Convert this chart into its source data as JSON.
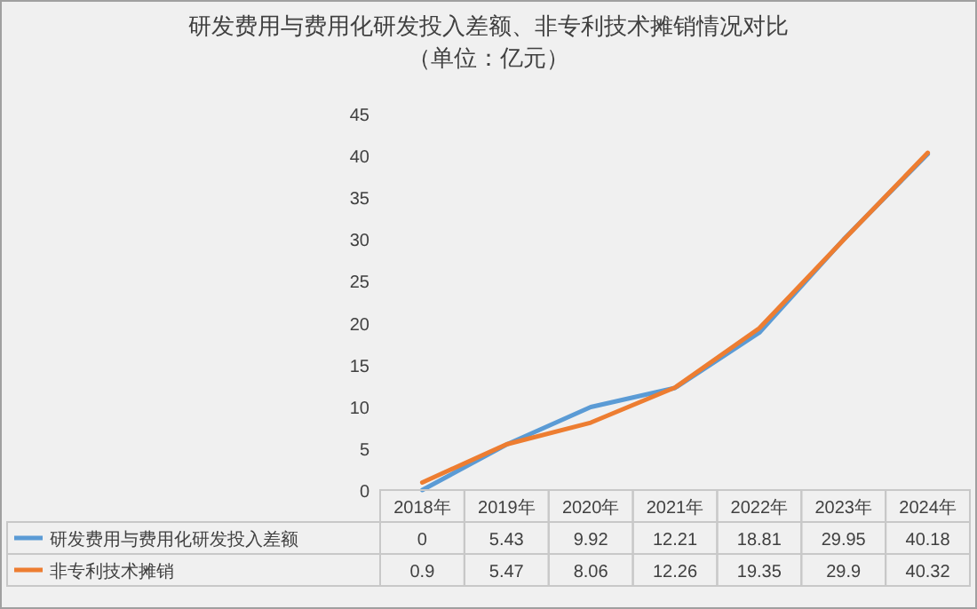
{
  "chart_data": {
    "type": "line",
    "title": "研发费用与费用化研发投入差额、非专利技术摊销情况对比",
    "subtitle": "（单位：亿元）",
    "categories": [
      "2018年",
      "2019年",
      "2020年",
      "2021年",
      "2022年",
      "2023年",
      "2024年"
    ],
    "series": [
      {
        "name": "研发费用与费用化研发投入差额",
        "color": "#5b9bd5",
        "values": [
          0,
          5.43,
          9.92,
          12.21,
          18.81,
          29.95,
          40.18
        ]
      },
      {
        "name": "非专利技术摊销",
        "color": "#ed7d31",
        "values": [
          0.9,
          5.47,
          8.06,
          12.26,
          19.35,
          29.9,
          40.32
        ]
      }
    ],
    "ylim": [
      0,
      45
    ],
    "yticks": [
      0,
      5,
      10,
      15,
      20,
      25,
      30,
      35,
      40,
      45
    ],
    "grid": false,
    "legend": "bottom left",
    "data_labels": true,
    "marker": "none",
    "line_style": "solid"
  }
}
